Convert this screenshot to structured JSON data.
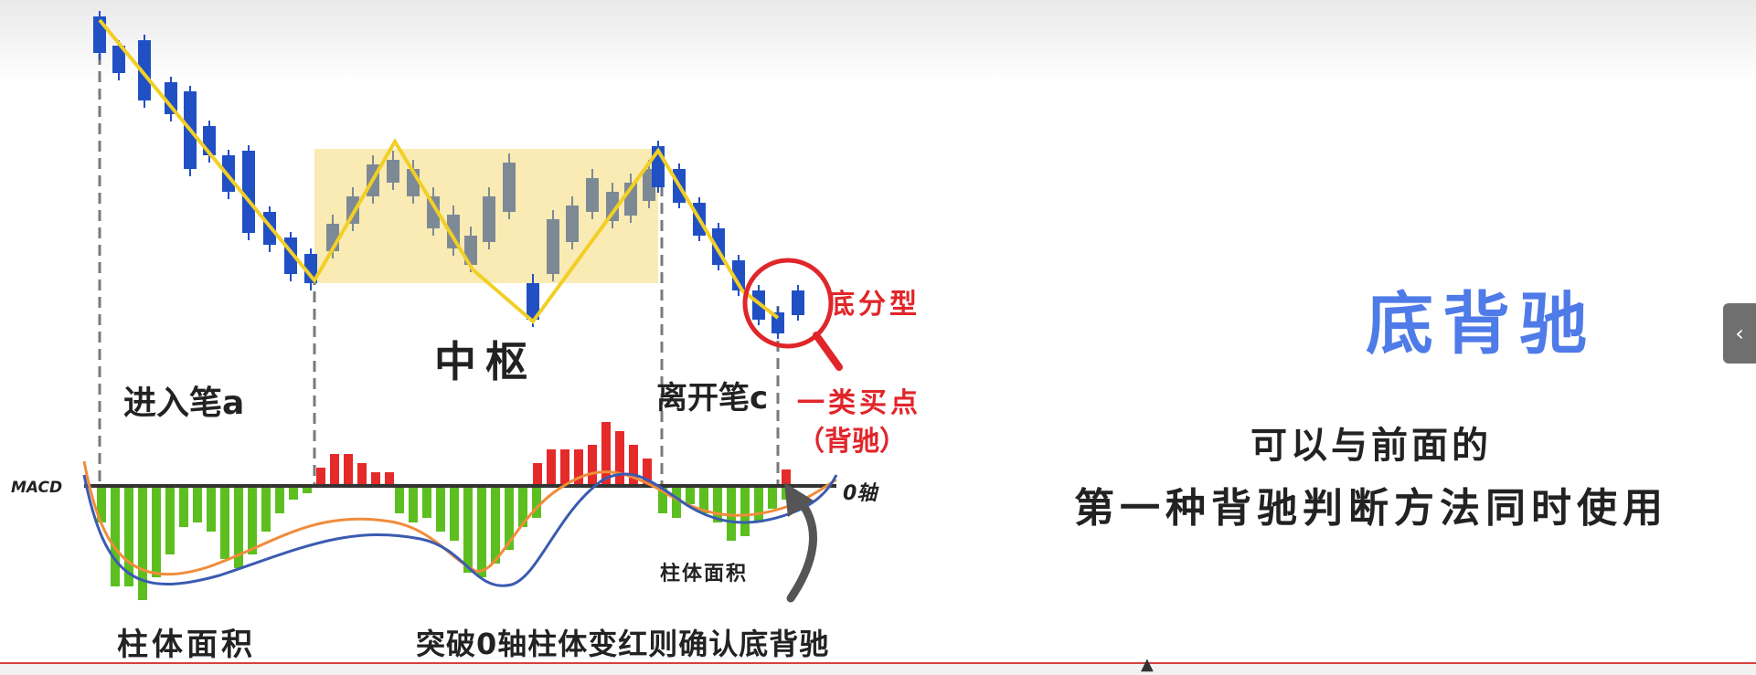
{
  "diagram": {
    "labels": {
      "entry_stroke": "进入笔a",
      "hub": "中枢",
      "exit_stroke": "离开笔c",
      "bottom_fractal": "底分型",
      "buy_point": "一类买点",
      "buy_point_note": "（背驰）",
      "macd": "MACD",
      "zero_axis": "0轴",
      "bar_area_left": "柱体面积",
      "bar_area_right": "柱体面积",
      "confirm_note": "突破0轴柱体变红则确认底背驰"
    },
    "colors": {
      "bear_candle": "#2150c4",
      "hub_candle": "#7d8a96",
      "stroke_line": "#f2cf24",
      "hub_box": "#f8e7a6",
      "macd_green": "#5cbf1f",
      "macd_red": "#e52a2a",
      "dif_line": "#3a5bb0",
      "dea_line": "#f08c3a",
      "highlight": "#e0262a"
    },
    "icons": [
      "magnifier-icon",
      "curved-arrow-icon"
    ]
  },
  "panel": {
    "title": "底背驰",
    "line1": "可以与前面的",
    "line2": "第一种背驰判断方法同时使用"
  },
  "ui": {
    "side_tab_icon": "chevron-left-icon"
  }
}
